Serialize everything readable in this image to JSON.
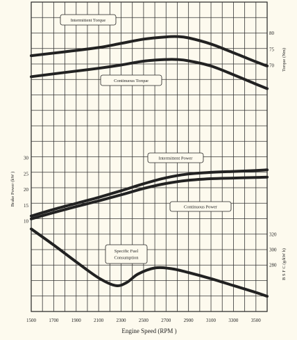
{
  "chart_data": {
    "type": "line",
    "xlabel": "Engine Speed (RPM )",
    "x_ticks": [
      1500,
      1700,
      1900,
      2100,
      2300,
      2500,
      2700,
      2900,
      3100,
      3300,
      3500
    ],
    "xlim": [
      1500,
      3600
    ],
    "grid": true,
    "axes": {
      "torque": {
        "label": "Torque (Nm)",
        "ticks": [
          80,
          75,
          70
        ],
        "side": "right"
      },
      "power": {
        "label": "Brake Power (kW )",
        "ticks": [
          30,
          25,
          20,
          15,
          10
        ],
        "side": "left"
      },
      "bsfc": {
        "label": "B S F C (g/kW h)",
        "ticks": [
          320,
          300,
          280
        ],
        "side": "right"
      }
    },
    "series": [
      {
        "name": "Intermittent Torque",
        "axis": "torque",
        "x": [
          1500,
          1800,
          2100,
          2300,
          2500,
          2700,
          2800,
          2900,
          3100,
          3300,
          3500,
          3600
        ],
        "y": [
          73,
          74.2,
          75.5,
          76.8,
          78.1,
          78.8,
          78.9,
          78.5,
          76.6,
          73.9,
          71.1,
          69.8
        ]
      },
      {
        "name": "Continuous Torque",
        "axis": "torque",
        "x": [
          1500,
          1800,
          2100,
          2300,
          2500,
          2700,
          2800,
          2900,
          3100,
          3300,
          3500,
          3600
        ],
        "y": [
          66.5,
          67.8,
          69.1,
          70.1,
          71.3,
          71.8,
          71.8,
          71.4,
          69.8,
          67.1,
          64.2,
          62.8
        ]
      },
      {
        "name": "Intermittent Power",
        "axis": "power",
        "x": [
          1500,
          1700,
          1900,
          2100,
          2300,
          2500,
          2700,
          2900,
          3100,
          3300,
          3500,
          3600
        ],
        "y": [
          11.6,
          13.7,
          15.6,
          17.5,
          19.6,
          21.8,
          23.7,
          24.9,
          25.4,
          25.7,
          26.0,
          26.2
        ]
      },
      {
        "name": "Continuous Power",
        "axis": "power",
        "x": [
          1500,
          1700,
          1900,
          2100,
          2300,
          2500,
          2700,
          2900,
          3100,
          3300,
          3500,
          3600
        ],
        "y": [
          10.7,
          12.7,
          14.6,
          16.4,
          18.3,
          20.3,
          21.9,
          22.9,
          23.4,
          23.6,
          23.8,
          23.9
        ]
      },
      {
        "name": "Specific Fuel Consumption",
        "axis": "bsfc",
        "x": [
          1500,
          1700,
          1900,
          2100,
          2250,
          2350,
          2450,
          2600,
          2750,
          2900,
          3100,
          3300,
          3500,
          3600
        ],
        "y": [
          327,
          306,
          284,
          263,
          253,
          257,
          268,
          276,
          275,
          270,
          262,
          253,
          244,
          239
        ]
      }
    ],
    "annotations": [
      "Intermittent Torque",
      "Continuous Torque",
      "Intermittent Power",
      "Continuous Power",
      "Specific Fuel\nConsumption"
    ]
  }
}
